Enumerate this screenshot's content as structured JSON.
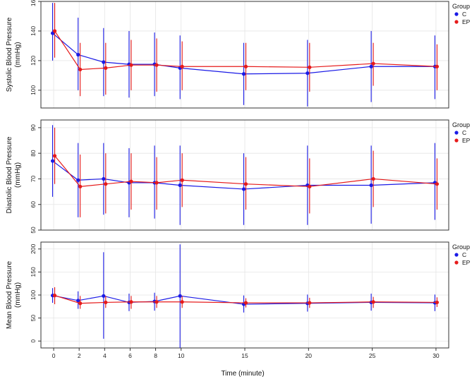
{
  "colors": {
    "C": "#1a1ae6",
    "EP": "#e61a1a",
    "grid": "#e5e5e5",
    "frame": "#333333"
  },
  "legend": {
    "title": "Group",
    "entries": [
      "C",
      "EP"
    ]
  },
  "shared_x": {
    "label": "Time (minute)",
    "ticks": [
      0,
      2,
      4,
      6,
      8,
      10,
      15,
      20,
      25,
      30
    ],
    "tick_labels": [
      "0",
      "2",
      "4",
      "6",
      "8",
      "10",
      "15",
      "20",
      "25",
      "30"
    ],
    "xlim": [
      -1,
      31
    ]
  },
  "chart_data": [
    {
      "type": "line",
      "ylabel_lines": [
        "Systolic Blood Pressure",
        "(mmHg)"
      ],
      "ylim": [
        88,
        160
      ],
      "yticks": [
        100,
        120,
        140,
        160
      ],
      "x": [
        0,
        2,
        4,
        6,
        8,
        10,
        15,
        20,
        25,
        30
      ],
      "series": [
        {
          "name": "C",
          "values": [
            138.5,
            124,
            119,
            117.5,
            117.5,
            115,
            111,
            111.5,
            116,
            116
          ],
          "lower": [
            120,
            100,
            96,
            95,
            96,
            94,
            90,
            89,
            92,
            94
          ],
          "upper": [
            159,
            149,
            142,
            140,
            139,
            137,
            132,
            134,
            140,
            137
          ]
        },
        {
          "name": "EP",
          "values": [
            140,
            114,
            115,
            117,
            117,
            116,
            116,
            115.5,
            118,
            116
          ],
          "lower": [
            122,
            96,
            97,
            100,
            99,
            100,
            100,
            99,
            103,
            100
          ],
          "upper": [
            159,
            132,
            132,
            134,
            135,
            133,
            132,
            132,
            132,
            131
          ]
        }
      ]
    },
    {
      "type": "line",
      "ylabel_lines": [
        "Diastolic Blood Pressure",
        "(mmHg)"
      ],
      "ylim": [
        50,
        93
      ],
      "yticks": [
        50,
        60,
        70,
        80,
        90
      ],
      "x": [
        0,
        2,
        4,
        6,
        8,
        10,
        15,
        20,
        25,
        30
      ],
      "series": [
        {
          "name": "C",
          "values": [
            77,
            69.5,
            70,
            68.5,
            68.5,
            67.5,
            66,
            67.5,
            67.5,
            68.5
          ],
          "lower": [
            63,
            55,
            56,
            55,
            54.5,
            52,
            52,
            52,
            52.5,
            54
          ],
          "upper": [
            91,
            84,
            84,
            82,
            83,
            83,
            80,
            83,
            83,
            84
          ]
        },
        {
          "name": "EP",
          "values": [
            79,
            67,
            68,
            69,
            68.5,
            69.5,
            68,
            67,
            70,
            68
          ],
          "lower": [
            68,
            55,
            56.5,
            58,
            58,
            59,
            58,
            56.5,
            59,
            58
          ],
          "upper": [
            90,
            79.5,
            80,
            80,
            78.5,
            80,
            78.5,
            78,
            81,
            78
          ]
        }
      ]
    },
    {
      "type": "line",
      "ylabel_lines": [
        "Mean Blood Pressure",
        "(mmHg)"
      ],
      "ylim": [
        -15,
        215
      ],
      "yticks": [
        0,
        50,
        100,
        150,
        200
      ],
      "x": [
        0,
        2,
        4,
        6,
        8,
        10,
        15,
        20,
        25,
        30
      ],
      "series": [
        {
          "name": "C",
          "values": [
            99,
            88,
            98,
            84,
            86,
            98,
            80,
            82,
            84,
            83
          ],
          "lower": [
            83,
            70,
            5,
            65,
            66,
            -15,
            62,
            64,
            66,
            65
          ],
          "upper": [
            115,
            108,
            193,
            103,
            105,
            210,
            99,
            101,
            103,
            101
          ]
        },
        {
          "name": "EP",
          "values": [
            99,
            82,
            84,
            85,
            85,
            85,
            83,
            83,
            85,
            84
          ],
          "lower": [
            80,
            70,
            72,
            70,
            72,
            72,
            73,
            72,
            72,
            74
          ],
          "upper": [
            117,
            98,
            98,
            98,
            98,
            98,
            93,
            94,
            96,
            95
          ]
        }
      ]
    }
  ]
}
